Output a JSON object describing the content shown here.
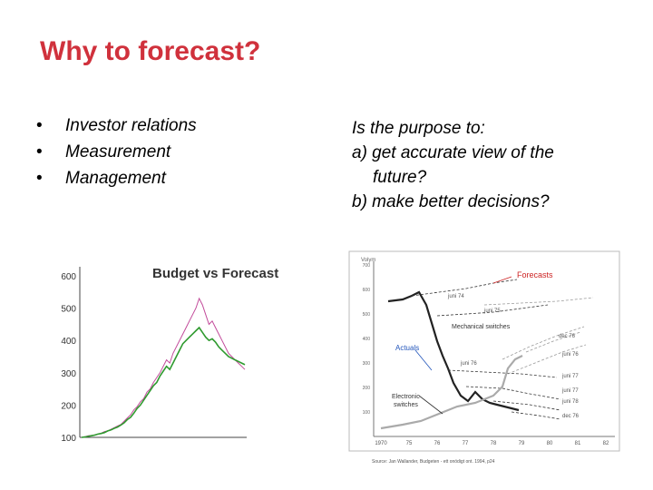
{
  "slide": {
    "title": "Why to forecast?",
    "bullets": [
      "Investor relations",
      "Measurement",
      "Management"
    ],
    "questions": {
      "intro": "Is the purpose to:",
      "a_line1": "a) get accurate view of the",
      "a_line2": "future?",
      "b": "b) make better decisions?"
    }
  },
  "colors": {
    "title": "#d0313c",
    "forecast_line": "#c24a9a",
    "actual_line": "#2f9a2f",
    "forecasts_label": "#cc2222",
    "actuals_label": "#2255bb"
  },
  "chart_data": [
    {
      "type": "line",
      "title": "Budget vs Forecast",
      "ylim": [
        100,
        600
      ],
      "yticks": [
        "600",
        "500",
        "400",
        "300",
        "200",
        "100"
      ],
      "x": [
        0,
        1,
        2,
        3,
        4,
        5,
        6,
        7,
        8,
        9,
        10,
        11,
        12,
        13,
        14,
        15,
        16,
        17,
        18,
        19,
        20,
        21,
        22,
        23,
        24,
        25,
        26,
        27,
        28,
        29,
        30,
        31,
        32,
        33,
        34,
        35,
        36,
        37,
        38,
        39,
        40,
        41,
        42,
        43,
        44,
        45,
        46,
        47,
        48,
        49,
        50
      ],
      "series": [
        {
          "name": "",
          "color": "magenta",
          "values": [
            100,
            102,
            105,
            106,
            108,
            110,
            113,
            118,
            120,
            125,
            130,
            135,
            140,
            150,
            160,
            170,
            185,
            195,
            210,
            220,
            240,
            250,
            270,
            285,
            300,
            320,
            340,
            330,
            360,
            380,
            400,
            420,
            440,
            460,
            480,
            500,
            530,
            510,
            480,
            450,
            460,
            440,
            420,
            400,
            380,
            360,
            350,
            340,
            330,
            320,
            310
          ]
        },
        {
          "name": "",
          "color": "green",
          "values": [
            100,
            101,
            103,
            105,
            107,
            110,
            112,
            115,
            120,
            123,
            128,
            132,
            138,
            145,
            155,
            162,
            175,
            190,
            200,
            215,
            230,
            245,
            260,
            270,
            290,
            305,
            320,
            310,
            330,
            350,
            370,
            390,
            400,
            410,
            420,
            430,
            440,
            425,
            410,
            400,
            405,
            395,
            380,
            370,
            360,
            350,
            345,
            340,
            335,
            330,
            325
          ]
        }
      ]
    },
    {
      "type": "line",
      "ylabel": "Volym",
      "yticks": [
        "700",
        "600",
        "500",
        "400",
        "300",
        "200",
        "100"
      ],
      "xticks": [
        "1970",
        "75",
        "76",
        "77",
        "78",
        "79",
        "80",
        "81",
        "82"
      ],
      "annotations": {
        "forecasts": "Forecasts",
        "juni74": "juni 74",
        "juni75": "juni 75",
        "mechanical": "Mechanical switches",
        "dec76a": "dec 76",
        "actuals": "Actuals",
        "juni76": "juni 76",
        "juni76b": "juni 76",
        "juni77": "juni 77",
        "juni77b": "juni 77",
        "juni78": "juni 78",
        "dec76b": "dec 76",
        "electronic1": "Electronic",
        "electronic2": "switches"
      },
      "source": "Source: Jan Wallander, Budgeten - ett onödigt ont. 1994, p24"
    }
  ]
}
